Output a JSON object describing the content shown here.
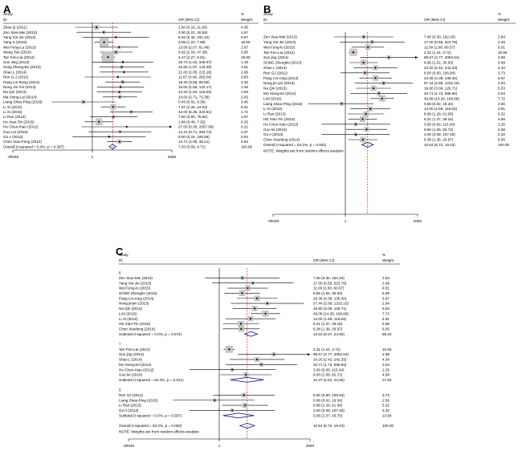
{
  "chart_data": [
    {
      "type": "forest",
      "panel_label": "A",
      "col_headers": {
        "study": "Study",
        "id": "ID",
        "or": "OR (95% CI)",
        "weight_pct": "%",
        "weight": "Weight"
      },
      "axis_ticks": [
        ".00049",
        "1",
        "2056"
      ],
      "xlim": [
        0.00049,
        2056
      ],
      "studies": [
        {
          "name": "Zhao Q (2011)",
          "or": 1.5,
          "lo": 0.19,
          "hi": 11.93,
          "ci": "1.50 (0.19, 11.93)",
          "w": "4.35"
        },
        {
          "name": "Zen Xiao-Mei (2013)",
          "or": 3.0,
          "lo": 0.22,
          "hi": 40.93,
          "ci": "3.00 (0.22, 40.93)",
          "w": "1.97"
        },
        {
          "name": "Yang Xin-Jie (2013)",
          "or": 9.62,
          "lo": 0.4,
          "hi": 231.42,
          "ci": "9.62 (0.40, 231.42)",
          "w": "0.87"
        },
        {
          "name": "Yang S (2016)",
          "or": 3.09,
          "lo": 1.24,
          "hi": 7.68,
          "ci": "3.09 (1.24, 7.68)",
          "w": "15.69"
        },
        {
          "name": "Wei Feng-Lu (2015)",
          "or": 13.0,
          "lo": 2.07,
          "hi": 81.48,
          "ci": "13.00 (2.07, 81.48)",
          "w": "1.97"
        },
        {
          "name": "Wang Tao (2016)",
          "or": 9.62,
          "lo": 2.03,
          "hi": 47.38,
          "ci": "9.62 (2.03, 47.38)",
          "w": "3.88"
        },
        {
          "name": "Tan Fen-Lai (2012)",
          "or": 4.47,
          "lo": 2.27,
          "hi": 8.81,
          "ci": "4.47 (2.27, 8.81)",
          "w": "29.90"
        },
        {
          "name": "Sun Jing (2014)",
          "or": 18.73,
          "lo": 1.02,
          "hi": 345.07,
          "ci": "18.73 (1.02, 345.07)",
          "w": "1.19"
        },
        {
          "name": "Song Zheng-Bo (2013)",
          "or": 16.8,
          "lo": 1.97,
          "hi": 143.49,
          "ci": "16.80 (1.97, 143.49)",
          "w": "1.81"
        },
        {
          "name": "Shao L (2014)",
          "or": 21.0,
          "lo": 2.05,
          "hi": 215.18,
          "ci": "21.00 (2.05, 215.18)",
          "w": "1.06"
        },
        {
          "name": "Ren G-J (2011)",
          "or": 11.67,
          "lo": 0.48,
          "hi": 282.04,
          "ci": "11.67 (0.48, 282.04)",
          "w": "0.83"
        },
        {
          "name": "Pang Lin-Rong (2014)",
          "or": 18.4,
          "lo": 3.55,
          "hi": 95.5,
          "ci": "18.40 (3.55, 95.50)",
          "w": "2.32"
        },
        {
          "name": "Nong Jin-Yin (2013)",
          "or": 15.0,
          "lo": 1.58,
          "hi": 142.17,
          "ci": "15.00 (1.58, 142.17)",
          "w": "1.48"
        },
        {
          "name": "Na Qin (2013)",
          "or": 13.33,
          "lo": 1.53,
          "hi": 115.83,
          "ci": "13.33 (1.53, 115.83)",
          "w": "1.93"
        },
        {
          "name": "Ma Xiong-Lei (2014)",
          "or": 14.0,
          "lo": 2.71,
          "hi": 72.36,
          "ci": "14.00 (2.71, 72.36)",
          "w": "2.63"
        },
        {
          "name": "Liang Shao-Ping (2015)",
          "or": 0.43,
          "lo": 0.02,
          "hi": 9.36,
          "ci": "0.43 (0.02, 9.36)",
          "w": "3.45"
        },
        {
          "name": "Li Xi (2012)",
          "or": 7.37,
          "lo": 2.26,
          "hi": 24.03,
          "ci": "7.37 (2.26, 24.03)",
          "w": "6.01"
        },
        {
          "name": "Li Xi (2015)",
          "or": 42.0,
          "lo": 5.45,
          "hi": 323.61,
          "ci": "42.00 (5.45, 323.61)",
          "w": "1.72"
        },
        {
          "name": "Li Ran (2013)",
          "or": 7.6,
          "lo": 0.8,
          "hi": 75.64,
          "ci": "7.60 (0.80, 75.64)",
          "w": "1.97"
        },
        {
          "name": "He Xiao-Tin (2015)",
          "or": 1.88,
          "lo": 0.48,
          "hi": 7.32,
          "ci": "1.88 (0.48, 7.32)",
          "w": "9.25"
        },
        {
          "name": "He Chun-Xiao (2012)",
          "or": 27.0,
          "lo": 0.35,
          "hi": 2057.98,
          "ci": "27.00 (0.35, 2057.98)",
          "w": "0.21",
          "arrow": true
        },
        {
          "name": "Guo Lei (2016)",
          "or": 14.24,
          "lo": 0.71,
          "hi": 284.73,
          "ci": "14.24 (0.71, 284.73)",
          "w": "1.07"
        },
        {
          "name": "Gu A (2013)",
          "or": 5.0,
          "lo": 0.15,
          "hi": 166.59,
          "ci": "5.00 (0.15, 166.59)",
          "w": "0.92"
        },
        {
          "name": "Chen Xiao-Feng (2014)",
          "or": 13.71,
          "lo": 4.05,
          "hi": 46.41,
          "ci": "13.71 (4.05, 46.41)",
          "w": "3.53"
        }
      ],
      "overall": {
        "label": "Overall  (I-squared = 5.4%, p = 0.387)",
        "or": 7.03,
        "lo": 5.09,
        "hi": 9.71,
        "ci": "7.03 (5.09, 9.71)",
        "w": "100.00"
      },
      "note": ""
    },
    {
      "type": "forest",
      "panel_label": "B",
      "col_headers": {
        "study": "Study",
        "id": "ID",
        "or": "OR (95% CI)",
        "weight_pct": "%",
        "weight": "Weight"
      },
      "axis_ticks": [
        ".00048",
        "1",
        "2083"
      ],
      "xlim": [
        0.00048,
        2083
      ],
      "studies": [
        {
          "name": "Zen Xiao-Mei (2013)",
          "or": 7.0,
          "lo": 0.3,
          "hi": 162.2,
          "ci": "7.00 (0.30, 162.20)",
          "w": "2.84"
        },
        {
          "name": "Yang Xin-Jie (2013)",
          "or": 17.0,
          "lo": 0.55,
          "hi": 523.79,
          "ci": "17.00 (0.55, 523.79)",
          "w": "2.48"
        },
        {
          "name": "Wei Feng-lu (2015)",
          "or": 11.0,
          "lo": 2.0,
          "hi": 60.57,
          "ci": "11.00 (2.00, 60.57)",
          "w": "6.01"
        },
        {
          "name": "Tan Fen-Lai (2012)",
          "or": 2.31,
          "lo": 1.44,
          "hi": 3.71,
          "ci": "2.31 (1.44, 3.71)",
          "w": "10.55"
        },
        {
          "name": "Sun jing (2014)",
          "or": 99.67,
          "lo": 4.77,
          "hi": 2082.64,
          "ci": "99.67 (4.77, 2082.64)",
          "w": "2.98",
          "arrow": true
        },
        {
          "name": "SONG Zhengbo (2013)",
          "or": 6.86,
          "lo": 1.52,
          "hi": 30.93,
          "ci": "6.86 (1.52, 30.93)",
          "w": "6.69"
        },
        {
          "name": "Shao L (2014)",
          "or": 24.2,
          "lo": 2.42,
          "hi": 242.33,
          "ci": "24.20 (2.42, 242.33)",
          "w": "4.34"
        },
        {
          "name": "Ren GJ (2011)",
          "or": 8.0,
          "lo": 0.6,
          "hi": 106.94,
          "ci": "8.00 (0.60, 106.94)",
          "w": "3.73"
        },
        {
          "name": "Pang Lin-rong (2014)",
          "or": 24.36,
          "lo": 4.38,
          "hi": 135.4,
          "ci": "24.36 (4.38, 135.40)",
          "w": "5.97"
        },
        {
          "name": "Nong jin-yin (2013)",
          "or": 57.44,
          "lo": 2.68,
          "hi": 1232.15,
          "ci": "57.44 (2.68, 1232.15)",
          "w": "2.94"
        },
        {
          "name": "Na Qin (2013)",
          "or": 19.8,
          "lo": 3.09,
          "hi": 126.71,
          "ci": "19.80 (3.09, 126.71)",
          "w": "5.53"
        },
        {
          "name": "MA Xiong-lei (2014)",
          "or": 34.71,
          "lo": 1.73,
          "hi": 696.94,
          "ci": "34.71 (1.73, 696.94)",
          "w": "3.04"
        },
        {
          "name": "LIXi (2015)",
          "or": 49.08,
          "lo": 14.28,
          "hi": 168.68,
          "ci": "49.08 (14.28, 168.68)",
          "w": "7.72"
        },
        {
          "name": "Liang Shao-Ping (2015)",
          "or": 0.68,
          "lo": 0.02,
          "hi": 19.34,
          "ci": "0.68 (0.02, 19.34)",
          "w": "2.56"
        },
        {
          "name": "Li Xi (2012)",
          "or": 14.0,
          "lo": 1.69,
          "hi": 115.83,
          "ci": "14.00 (1.69, 115.83)",
          "w": "4.81"
        },
        {
          "name": "Li Ran (2013)",
          "or": 8.89,
          "lo": 1.29,
          "hi": 61.06,
          "ci": "8.89 (1.29, 61.06)",
          "w": "5.32"
        },
        {
          "name": "HE Xiao-Tin (2015)",
          "or": 6.21,
          "lo": 1.37,
          "hi": 28.15,
          "ci": "6.21 (1.37, 28.15)",
          "w": "6.68"
        },
        {
          "name": "He Chun-Xiao (2012)",
          "or": 3.0,
          "lo": 0.08,
          "hi": 115.34,
          "ci": "3.00 (0.08, 115.34)",
          "w": "2.25"
        },
        {
          "name": "Guo lei (2016)",
          "or": 9.5,
          "lo": 1.09,
          "hi": 82.72,
          "ci": "9.50 (1.09, 82.72)",
          "w": "4.68"
        },
        {
          "name": "Gu A (2013)",
          "or": 3.0,
          "lo": 0.08,
          "hi": 107.45,
          "ci": "3.00 (0.08, 107.45)",
          "w": "2.32"
        },
        {
          "name": "Chen Xiaofeng (2014)",
          "or": 6.38,
          "lo": 1.36,
          "hi": 29.97,
          "ci": "6.38 (1.36, 29.97)",
          "w": "6.55"
        }
      ],
      "overall": {
        "label": "Overall  (I-squared = 53.2%, p = 0.002)",
        "or": 10.54,
        "lo": 5.72,
        "hi": 19.43,
        "ci": "10.54 (5.72, 19.43)",
        "w": "100.00"
      },
      "note": "NOTE: Weights are from random effects analysis"
    },
    {
      "type": "forest",
      "panel_label": "C",
      "col_headers": {
        "study": "Study",
        "id": "ID",
        "or": "OR (95% CI)",
        "weight_pct": "%",
        "weight": "Weight"
      },
      "axis_ticks": [
        ".00048",
        "1",
        "2083"
      ],
      "xlim": [
        0.00048,
        2083
      ],
      "subgroups": [
        {
          "label": "6",
          "studies": [
            {
              "name": "Zen Xiao-Mei (2013)",
              "or": 7.0,
              "lo": 0.3,
              "hi": 162.2,
              "ci": "7.00 (0.30, 162.20)",
              "w": "2.84"
            },
            {
              "name": "Yang Xin-Jie (2013)",
              "or": 17.0,
              "lo": 0.55,
              "hi": 523.79,
              "ci": "17.00 (0.55, 523.79)",
              "w": "2.48"
            },
            {
              "name": "Wei Feng-lu (2015)",
              "or": 11.0,
              "lo": 2.0,
              "hi": 60.57,
              "ci": "11.00 (2.00, 60.57)",
              "w": "6.01"
            },
            {
              "name": "SONG Zhengbo (2013)",
              "or": 6.86,
              "lo": 1.52,
              "hi": 30.93,
              "ci": "6.86 (1.52, 30.93)",
              "w": "6.69"
            },
            {
              "name": "Pang Lin-rong (2014)",
              "or": 24.36,
              "lo": 4.38,
              "hi": 135.4,
              "ci": "24.36 (4.38, 135.40)",
              "w": "5.97"
            },
            {
              "name": "Nong jinyin (2013)",
              "or": 57.44,
              "lo": 2.68,
              "hi": 1232.15,
              "ci": "57.44 (2.68, 1232.15)",
              "w": "2.94"
            },
            {
              "name": "Na Qin (2013)",
              "or": 19.8,
              "lo": 3.09,
              "hi": 126.71,
              "ci": "19.80 (3.09, 126.71)",
              "w": "5.53"
            },
            {
              "name": "LIXi (2015)",
              "or": 49.08,
              "lo": 14.28,
              "hi": 168.68,
              "ci": "49.08 (14.28, 168.68)",
              "w": "7.72"
            },
            {
              "name": "Li Xi (2012)",
              "or": 14.0,
              "lo": 1.69,
              "hi": 115.83,
              "ci": "14.00 (1.69, 115.83)",
              "w": "4.81"
            },
            {
              "name": "HE Xiao-Tin (2015)",
              "or": 6.21,
              "lo": 1.37,
              "hi": 28.15,
              "ci": "6.21 (1.37, 28.15)",
              "w": "6.68"
            },
            {
              "name": "Chen Xiaofeng (2014)",
              "or": 6.38,
              "lo": 1.36,
              "hi": 29.97,
              "ci": "6.38 (1.36, 29.97)",
              "w": "6.55"
            }
          ],
          "subtotal": {
            "label": "Subtotal  (I-squared = 0.0%, p = 0.574)",
            "or": 14.53,
            "lo": 8.47,
            "hi": 24.9,
            "ci": "14.53 (8.47, 24.90)",
            "w": "58.22"
          }
        },
        {
          "label": "7",
          "studies": [
            {
              "name": "Tan Fen-Lai (2012)",
              "or": 2.31,
              "lo": 1.44,
              "hi": 3.71,
              "ci": "2.31 (1.44, 3.71)",
              "w": "10.55"
            },
            {
              "name": "Sun jing (2014)",
              "or": 99.67,
              "lo": 4.77,
              "hi": 2082.64,
              "ci": "99.67 (4.77, 2082.64)",
              "w": "2.98",
              "arrow": true
            },
            {
              "name": "Shao L (2014)",
              "or": 24.2,
              "lo": 2.42,
              "hi": 242.33,
              "ci": "24.20 (2.42, 242.33)",
              "w": "4.34"
            },
            {
              "name": "MA Xiong-lei (2014)",
              "or": 34.71,
              "lo": 1.73,
              "hi": 696.94,
              "ci": "34.71 (1.73, 696.94)",
              "w": "3.04"
            },
            {
              "name": "He Chun-Xiao (2012)",
              "or": 3.0,
              "lo": 0.08,
              "hi": 115.34,
              "ci": "3.00 (0.08, 115.34)",
              "w": "2.25"
            },
            {
              "name": "Guo lei (2016)",
              "or": 9.5,
              "lo": 1.09,
              "hi": 82.72,
              "ci": "9.50 (1.09, 82.72)",
              "w": "4.68"
            }
          ],
          "subtotal": {
            "label": "Subtotal  (I-squared = 62.4%, p = 0.021)",
            "or": 10.37,
            "lo": 2.52,
            "hi": 42.56,
            "ci": "10.37 (2.52, 42.56)",
            "w": "27.84"
          }
        },
        {
          "label": "5",
          "studies": [
            {
              "name": "Ren GJ (2011)",
              "or": 8.0,
              "lo": 0.6,
              "hi": 106.94,
              "ci": "8.00 (0.60, 106.94)",
              "w": "3.73"
            },
            {
              "name": "Liang Shao-Ping (2015)",
              "or": 0.68,
              "lo": 0.02,
              "hi": 19.34,
              "ci": "0.68 (0.02, 19.34)",
              "w": "2.56"
            },
            {
              "name": "Li Ran (2013)",
              "or": 8.89,
              "lo": 1.29,
              "hi": 61.06,
              "ci": "8.89 (1.29, 61.06)",
              "w": "5.32"
            },
            {
              "name": "Gu A (2013)",
              "or": 3.0,
              "lo": 0.08,
              "hi": 107.45,
              "ci": "3.00 (0.08, 107.45)",
              "w": "2.32"
            }
          ],
          "subtotal": {
            "label": "Subtotal  (I-squared = 0.0%, p = 0.587)",
            "or": 5.06,
            "lo": 1.37,
            "hi": 18.7,
            "ci": "5.06 (1.37, 18.70)",
            "w": "13.94"
          }
        }
      ],
      "overall": {
        "label": "Overall  (I-squared = 53.2%, p = 0.002)",
        "or": 10.54,
        "lo": 5.72,
        "hi": 19.43,
        "ci": "10.54 (5.72, 19.43)",
        "w": "100.00"
      },
      "note": "NOTE: Weights are from random effects analysis"
    }
  ]
}
